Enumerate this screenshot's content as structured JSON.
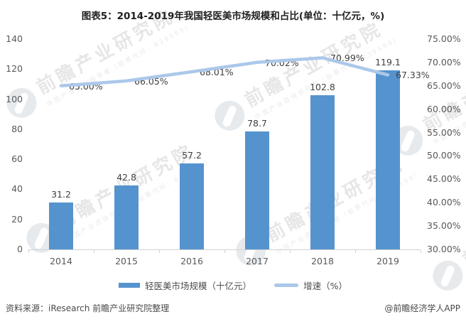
{
  "title": "图表5：2014-2019年我国轻医美市场规模和占比(单位：十亿元，%)",
  "chart_data": {
    "type": "bar",
    "subtype": "bar+line combo, dual axis",
    "title": "图表5：2014-2019年我国轻医美市场规模和占比(单位：十亿元，%)",
    "xlabel": "",
    "ylabel_left": "市场规模（十亿元）",
    "ylabel_right": "增速（%）",
    "grid": false,
    "legend_position": "bottom",
    "categories": [
      "2014",
      "2015",
      "2016",
      "2017",
      "2018",
      "2019"
    ],
    "series": [
      {
        "name": "轻医美市场规模（十亿元）",
        "type": "bar",
        "axis": "left",
        "values": [
          31.2,
          42.8,
          57.2,
          78.7,
          102.8,
          119.1
        ],
        "labels": [
          "31.2",
          "42.8",
          "57.2",
          "78.7",
          "102.8",
          "119.1"
        ],
        "color": "#5593CE"
      },
      {
        "name": "增速（%）",
        "type": "line",
        "axis": "right",
        "values": [
          65.0,
          66.05,
          68.01,
          70.02,
          70.99,
          67.33
        ],
        "labels": [
          "65.00%",
          "66.05%",
          "68.01%",
          "70.02%",
          "70.99%",
          "67.33%"
        ],
        "color": "#ABC8E9"
      }
    ],
    "left_axis": {
      "min": 0,
      "max": 140,
      "step": 20,
      "tick_labels": [
        "0",
        "20",
        "40",
        "60",
        "80",
        "100",
        "120",
        "140"
      ]
    },
    "right_axis": {
      "min": 30,
      "max": 75,
      "step": 5,
      "tick_labels": [
        "30.00%",
        "35.00%",
        "40.00%",
        "45.00%",
        "50.00%",
        "55.00%",
        "60.00%",
        "65.00%",
        "70.00%",
        "75.00%"
      ]
    }
  },
  "legend": [
    {
      "label": "轻医美市场规模（十亿元）",
      "marker": "bar",
      "marker_color": "#5593CE"
    },
    {
      "label": "增速（%）",
      "marker": "line",
      "marker_color": "#ABC8E9"
    }
  ],
  "footer": {
    "source": "资料来源：iResearch 前瞻产业研究院整理",
    "credit": "@前瞻经济学人APP"
  },
  "watermark": {
    "text": "前瞻产业研究院",
    "subtext": "中国产业咨询领导者（股票代码：839599）",
    "color": "#d3d3d3"
  },
  "colors": {
    "bar": "#5593CE",
    "line": "#ABC8E9",
    "axis_text": "#595959",
    "data_label_text": "#3f3f3f",
    "axis_line": "#d2d2d2"
  }
}
